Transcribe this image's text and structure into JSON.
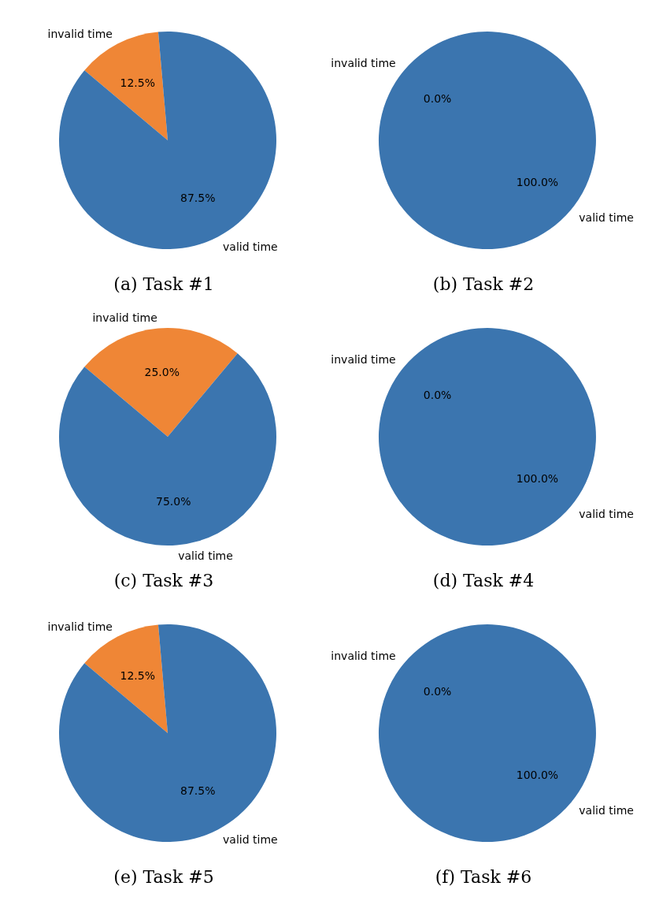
{
  "chart_data": [
    {
      "type": "pie",
      "title": "(a) Task #1",
      "categories": [
        "invalid time",
        "valid time"
      ],
      "values": [
        12.5,
        87.5
      ],
      "colors": [
        "#ef8636",
        "#3b75af"
      ],
      "value_labels": [
        "12.5%",
        "87.5%"
      ]
    },
    {
      "type": "pie",
      "title": "(b) Task #2",
      "categories": [
        "invalid time",
        "valid time"
      ],
      "values": [
        0,
        100
      ],
      "colors": [
        "#ef8636",
        "#3b75af"
      ],
      "value_labels": [
        "0.0%",
        "100.0%"
      ]
    },
    {
      "type": "pie",
      "title": "(c) Task #3",
      "categories": [
        "invalid time",
        "valid time"
      ],
      "values": [
        25,
        75
      ],
      "colors": [
        "#ef8636",
        "#3b75af"
      ],
      "value_labels": [
        "25.0%",
        "75.0%"
      ]
    },
    {
      "type": "pie",
      "title": "(d) Task #4",
      "categories": [
        "invalid time",
        "valid time"
      ],
      "values": [
        0,
        100
      ],
      "colors": [
        "#ef8636",
        "#3b75af"
      ],
      "value_labels": [
        "0.0%",
        "100.0%"
      ]
    },
    {
      "type": "pie",
      "title": "(e) Task #5",
      "categories": [
        "invalid time",
        "valid time"
      ],
      "values": [
        12.5,
        87.5
      ],
      "colors": [
        "#ef8636",
        "#3b75af"
      ],
      "value_labels": [
        "12.5%",
        "87.5%"
      ]
    },
    {
      "type": "pie",
      "title": "(f) Task #6",
      "categories": [
        "invalid time",
        "valid time"
      ],
      "values": [
        0,
        100
      ],
      "colors": [
        "#ef8636",
        "#3b75af"
      ],
      "value_labels": [
        "0.0%",
        "100.0%"
      ]
    }
  ]
}
